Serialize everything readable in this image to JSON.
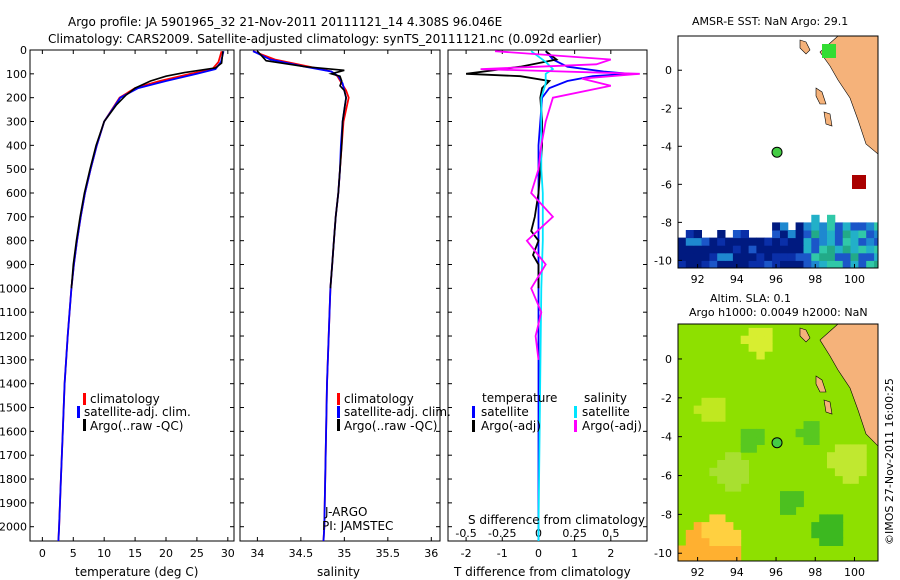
{
  "header": {
    "line1": "Argo profile: JA 5901965_32 21-Nov-2011 20111121_14 4.308S 96.046E",
    "line2": "Climatology: CARS2009. Satellite-adjusted climatology: synTS_20111121.nc (0.092d earlier)"
  },
  "colors": {
    "climatology": "#ff0000",
    "satellite": "#0000ff",
    "argo": "#000000",
    "salinity_sat": "#00e5ff",
    "salinity_argo": "#ff00ff"
  },
  "chart_data": [
    {
      "type": "line",
      "id": "temperature",
      "xlabel": "temperature (deg C)",
      "xlim": [
        -2,
        31
      ],
      "ylim": [
        2060,
        0
      ],
      "x_ticks": [
        0,
        5,
        10,
        15,
        20,
        25,
        30
      ],
      "y_ticks": [
        0,
        100,
        200,
        300,
        400,
        500,
        600,
        700,
        800,
        900,
        1000,
        1100,
        1200,
        1300,
        1400,
        1500,
        1600,
        1700,
        1800,
        1900,
        2000
      ],
      "legend": [
        "climatology",
        "satellite-adj. clim.",
        "Argo(..raw -QC)"
      ],
      "series": [
        {
          "name": "climatology",
          "depth": [
            5,
            50,
            80,
            100,
            130,
            160,
            200,
            300,
            400,
            500,
            600,
            700,
            800,
            900,
            1000,
            1200,
            1400,
            1600,
            1800,
            2000,
            2060
          ],
          "values": [
            29,
            28.5,
            27.5,
            24,
            19,
            15,
            12.5,
            10,
            8.8,
            7.8,
            6.9,
            6.2,
            5.6,
            5.1,
            4.7,
            4.1,
            3.6,
            3.3,
            3.0,
            2.7,
            2.6
          ]
        },
        {
          "name": "satellite-adj. clim.",
          "depth": [
            5,
            50,
            80,
            100,
            130,
            160,
            200,
            300,
            400,
            500,
            600,
            700,
            800,
            900,
            1000,
            1200,
            1400,
            1600,
            1800,
            2000,
            2060
          ],
          "values": [
            29.3,
            28.9,
            28,
            25,
            20,
            15.5,
            12.6,
            10,
            8.8,
            7.8,
            6.9,
            6.2,
            5.6,
            5.1,
            4.7,
            4.1,
            3.6,
            3.3,
            3.0,
            2.7,
            2.6
          ]
        },
        {
          "name": "Argo(..raw -QC)",
          "depth": [
            5,
            55,
            75,
            95,
            110,
            130,
            160,
            190,
            230,
            300,
            400,
            500,
            600,
            700,
            800,
            900,
            1000
          ],
          "values": [
            29.2,
            29,
            28,
            23,
            20,
            17.5,
            15,
            13.5,
            12,
            10,
            8.7,
            7.7,
            6.8,
            6.1,
            5.5,
            5.0,
            4.7
          ]
        }
      ]
    },
    {
      "type": "line",
      "id": "salinity",
      "xlabel": "salinity",
      "xlim": [
        33.8,
        36.1
      ],
      "ylim": [
        2060,
        0
      ],
      "x_ticks": [
        34,
        34.5,
        35,
        35.5,
        36
      ],
      "legend": [
        "climatology",
        "satellite-adj. clim.",
        "Argo(..raw -QC)"
      ],
      "annotations": [
        "J-ARGO",
        "PI: JAMSTEC"
      ],
      "series": [
        {
          "name": "climatology",
          "depth": [
            5,
            40,
            70,
            90,
            110,
            140,
            170,
            200,
            250,
            300,
            400,
            500,
            600,
            700,
            800,
            900,
            1000,
            1200,
            1400,
            1600,
            1800,
            2000,
            2060
          ],
          "values": [
            33.95,
            34.2,
            34.6,
            34.85,
            34.92,
            34.97,
            35.02,
            35.05,
            35.02,
            34.99,
            34.97,
            34.95,
            34.93,
            34.9,
            34.88,
            34.86,
            34.84,
            34.82,
            34.8,
            34.79,
            34.78,
            34.77,
            34.76
          ]
        },
        {
          "name": "satellite-adj. clim.",
          "depth": [
            5,
            40,
            70,
            90,
            110,
            140,
            170,
            200,
            250,
            300,
            400,
            500,
            600,
            700,
            800,
            900,
            1000,
            1200,
            1400,
            1600,
            1800,
            2000,
            2060
          ],
          "values": [
            33.95,
            34.15,
            34.55,
            34.85,
            34.93,
            34.98,
            35.0,
            35.02,
            35.0,
            34.98,
            34.96,
            34.95,
            34.93,
            34.9,
            34.88,
            34.86,
            34.84,
            34.82,
            34.8,
            34.79,
            34.78,
            34.77,
            34.76
          ]
        },
        {
          "name": "Argo(..raw -QC)",
          "depth": [
            5,
            45,
            70,
            85,
            100,
            110,
            130,
            150,
            170,
            200,
            250,
            300,
            400,
            500,
            600,
            700,
            800,
            900,
            1000
          ],
          "values": [
            34.0,
            34.1,
            34.55,
            35.0,
            34.85,
            34.95,
            34.97,
            34.95,
            35.0,
            35.02,
            35.0,
            34.98,
            34.97,
            34.95,
            34.93,
            34.9,
            34.88,
            34.86,
            34.84
          ]
        }
      ]
    },
    {
      "type": "line",
      "id": "difference",
      "xlabel": "T difference from climatology",
      "xlabel_top": "S difference from climatology",
      "xlim": [
        -2.5,
        3
      ],
      "ylim": [
        2060,
        0
      ],
      "x_ticks": [
        -2,
        -1,
        0,
        1,
        2
      ],
      "x_ticks_top": [
        -0.5,
        -0.25,
        0,
        0.25,
        0.5
      ],
      "legend_headers": [
        "temperature",
        "salinity"
      ],
      "legend": [
        "satellite",
        "Argo(-adj)",
        "satellite",
        "Argo(-adj)"
      ],
      "series": [
        {
          "name": "temperature satellite",
          "depth": [
            5,
            40,
            70,
            90,
            100,
            110,
            130,
            160,
            200,
            300,
            400,
            500,
            600,
            800,
            1000,
            1500,
            2000,
            2060
          ],
          "values": [
            0.2,
            0.4,
            0.8,
            1.8,
            2.5,
            1.5,
            0.8,
            0.3,
            0.1,
            0.05,
            0,
            0,
            0,
            0,
            0,
            0,
            0,
            0
          ]
        },
        {
          "name": "temperature Argo(-adj)",
          "depth": [
            5,
            40,
            70,
            80,
            100,
            110,
            130,
            160,
            200,
            300,
            400,
            500,
            600,
            700,
            760,
            800,
            860,
            900,
            1000
          ],
          "values": [
            0.2,
            0.5,
            -0.5,
            -1.0,
            -2.0,
            -0.5,
            0.3,
            0.1,
            0.05,
            0.1,
            0.1,
            0.05,
            0,
            -0.1,
            -0.2,
            0,
            -0.15,
            0,
            0
          ]
        },
        {
          "name": "salinity satellite",
          "depth": [
            5,
            50,
            80,
            100,
            140,
            200,
            300,
            400,
            500,
            600,
            800,
            1000,
            1500,
            2000,
            2060
          ],
          "values": [
            -0.05,
            0.05,
            0.1,
            0.05,
            0.05,
            0.02,
            0.02,
            0.02,
            0.02,
            0.03,
            0.03,
            0.02,
            0.01,
            0,
            0
          ]
        },
        {
          "name": "salinity Argo(-adj)",
          "depth": [
            5,
            40,
            60,
            80,
            100,
            120,
            150,
            200,
            300,
            400,
            500,
            600,
            700,
            800,
            900,
            1000,
            1100,
            1200,
            1300
          ],
          "values": [
            -0.3,
            0.5,
            0.4,
            -0.4,
            0.7,
            0.3,
            0.5,
            0.1,
            0.05,
            0.02,
            0.0,
            -0.05,
            0.1,
            -0.08,
            0.05,
            -0.05,
            0.02,
            -0.02,
            0
          ]
        }
      ]
    },
    {
      "type": "heatmap",
      "id": "sst_map",
      "title": "AMSR-E SST: NaN  Argo: 29.1",
      "xlim": [
        91,
        101.2
      ],
      "ylim": [
        -10.4,
        1.8
      ],
      "x_ticks": [
        92,
        94,
        96,
        98,
        100
      ],
      "y_ticks": [
        0,
        -2,
        -4,
        -6,
        -8,
        -10
      ],
      "argo_position": {
        "lon": 96.05,
        "lat": -4.31
      }
    },
    {
      "type": "heatmap",
      "id": "sla_map",
      "title_line1": "Altim. SLA: 0.1",
      "title_line2": "Argo h1000: 0.0049 h2000: NaN",
      "xlim": [
        91,
        101.2
      ],
      "ylim": [
        -10.4,
        1.8
      ],
      "x_ticks": [
        92,
        94,
        96,
        98,
        100
      ],
      "y_ticks": [
        0,
        -2,
        -4,
        -6,
        -8,
        -10
      ],
      "argo_position": {
        "lon": 96.05,
        "lat": -4.31
      }
    }
  ],
  "footer": {
    "credit": "©IMOS 27-Nov-2011 16:00:25"
  }
}
